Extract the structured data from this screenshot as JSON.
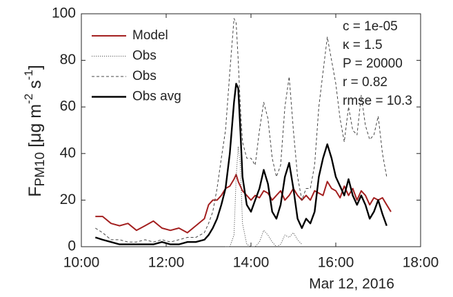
{
  "chart_data": {
    "type": "line",
    "ylabel_parts": [
      "F",
      "PM10",
      " [μg m",
      "-2",
      " s",
      "-1",
      "]"
    ],
    "xlabel": "Mar 12, 2016",
    "annotations": [
      "c = 1e-05",
      "κ = 1.5",
      "P = 20000",
      "r = 0.82",
      "rmse = 10.3"
    ],
    "xlim": [
      10,
      18
    ],
    "xticks": [
      {
        "value": 10,
        "label": "10:00"
      },
      {
        "value": 12,
        "label": "12:00"
      },
      {
        "value": 14,
        "label": "14:00"
      },
      {
        "value": 16,
        "label": "16:00"
      },
      {
        "value": 18,
        "label": "18:00"
      }
    ],
    "ylim": [
      0,
      100
    ],
    "yticks": [
      0,
      20,
      40,
      60,
      80,
      100
    ],
    "legend": "upper left",
    "x": [
      10.33,
      10.5,
      10.7,
      10.9,
      11.1,
      11.3,
      11.5,
      11.7,
      11.9,
      12.1,
      12.3,
      12.5,
      12.7,
      12.9,
      13.0,
      13.1,
      13.2,
      13.3,
      13.4,
      13.5,
      13.6,
      13.65,
      13.7,
      13.75,
      13.8,
      13.9,
      14.0,
      14.1,
      14.2,
      14.3,
      14.4,
      14.5,
      14.6,
      14.7,
      14.8,
      14.9,
      15.0,
      15.1,
      15.2,
      15.3,
      15.4,
      15.5,
      15.6,
      15.7,
      15.8,
      15.9,
      16.0,
      16.1,
      16.2,
      16.3,
      16.4,
      16.5,
      16.6,
      16.7,
      16.8,
      16.9,
      17.0,
      17.1,
      17.2,
      17.3
    ],
    "series": [
      {
        "name": "Model",
        "color": "#a31f1f",
        "dash": "solid",
        "width": 2,
        "values": [
          13,
          13,
          10,
          9,
          10,
          7,
          9,
          11,
          8,
          7,
          8,
          6,
          9,
          12,
          18,
          20,
          20,
          22,
          25,
          26,
          29,
          31,
          28,
          26,
          24,
          22,
          20,
          22,
          21,
          24,
          23,
          20,
          22,
          24,
          20,
          22,
          25,
          22,
          20,
          22,
          20,
          24,
          23,
          22,
          28,
          25,
          24,
          21,
          26,
          22,
          25,
          20,
          24,
          22,
          18,
          21,
          20,
          21,
          18,
          15
        ]
      },
      {
        "name": "Obs",
        "color": "#555555",
        "dash": "dotted",
        "width": 1,
        "values": [
          null,
          null,
          null,
          null,
          null,
          null,
          null,
          null,
          null,
          null,
          null,
          null,
          null,
          null,
          null,
          null,
          null,
          null,
          0,
          0,
          5,
          30,
          43,
          35,
          10,
          1,
          0,
          0,
          2,
          7,
          5,
          2,
          0,
          1,
          5,
          4,
          6,
          3,
          1,
          null,
          null,
          null,
          null,
          null,
          null,
          null,
          null,
          null,
          null,
          null,
          null,
          null,
          null,
          null,
          null,
          null,
          null,
          null,
          null,
          null
        ]
      },
      {
        "name": "Obs",
        "color": "#444444",
        "dash": "dashed",
        "width": 1,
        "values": [
          8,
          6,
          3,
          3,
          2,
          2,
          3,
          2,
          3,
          2,
          3,
          4,
          4,
          6,
          10,
          15,
          25,
          38,
          50,
          75,
          98,
          96,
          80,
          60,
          45,
          38,
          38,
          35,
          50,
          62,
          55,
          38,
          30,
          35,
          60,
          73,
          50,
          30,
          20,
          25,
          25,
          35,
          60,
          75,
          90,
          80,
          70,
          55,
          45,
          60,
          50,
          48,
          65,
          52,
          46,
          48,
          56,
          40,
          30,
          null
        ]
      },
      {
        "name": "Obs avg",
        "color": "#000000",
        "dash": "solid",
        "width": 2.4,
        "values": [
          4,
          3,
          2,
          1,
          1,
          1,
          1,
          1,
          2,
          1,
          1,
          2,
          2,
          3,
          5,
          8,
          12,
          18,
          25,
          40,
          62,
          70,
          68,
          50,
          30,
          18,
          15,
          20,
          25,
          33,
          27,
          15,
          12,
          18,
          30,
          36,
          25,
          12,
          8,
          12,
          10,
          15,
          30,
          38,
          44,
          38,
          30,
          26,
          22,
          29,
          22,
          18,
          22,
          18,
          12,
          15,
          20,
          14,
          9,
          null
        ]
      }
    ]
  }
}
